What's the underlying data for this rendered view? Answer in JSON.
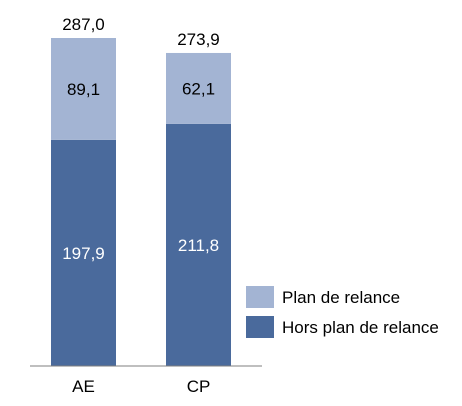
{
  "chart_data": {
    "type": "bar",
    "stacked": true,
    "categories": [
      "AE",
      "CP"
    ],
    "series": [
      {
        "name": "Hors plan de relance",
        "values": [
          197.9,
          211.8
        ],
        "labels": [
          "197,9",
          "211,8"
        ],
        "color": "#4a6a9c"
      },
      {
        "name": "Plan de relance",
        "values": [
          89.1,
          62.1
        ],
        "labels": [
          "89,1",
          "62,1"
        ],
        "color": "#a3b4d3"
      }
    ],
    "totals": [
      287.0,
      273.9
    ],
    "total_labels": [
      "287,0",
      "273,9"
    ],
    "ylim": [
      0,
      287.0
    ],
    "grid": false,
    "legend_position": "right"
  }
}
